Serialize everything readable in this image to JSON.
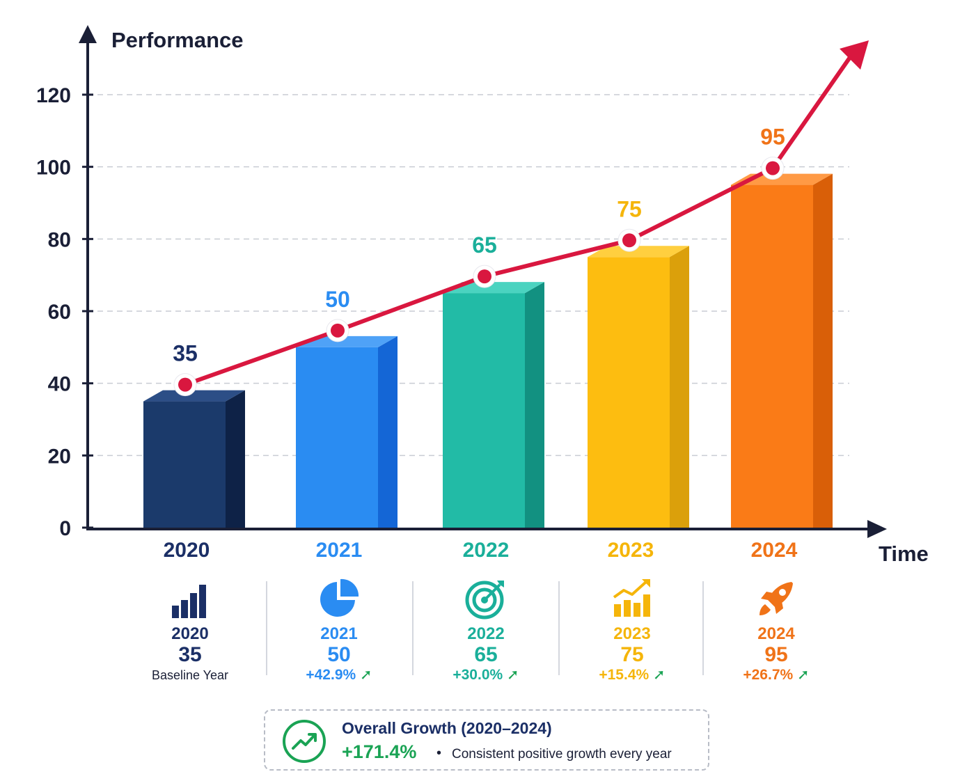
{
  "chart_data": {
    "type": "bar",
    "ylabel": "Performance",
    "xlabel": "Time",
    "ylim": [
      0,
      120
    ],
    "yticks": [
      0,
      20,
      40,
      60,
      80,
      100,
      120
    ],
    "grid": true,
    "categories": [
      "2020",
      "2021",
      "2022",
      "2023",
      "2024"
    ],
    "values": [
      35,
      50,
      65,
      75,
      95
    ],
    "bar_colors": [
      "#1b3a6b",
      "#2a8cf2",
      "#22bba6",
      "#fdbd10",
      "#fa7b17"
    ],
    "bar_side_colors": [
      "#0e2247",
      "#1466d6",
      "#129181",
      "#dba00b",
      "#d95f08"
    ],
    "bar_top_colors": [
      "#2c4e86",
      "#4fa2f7",
      "#4bd3c0",
      "#ffcf3f",
      "#ff9a45"
    ],
    "label_colors": [
      "#1b2f66",
      "#2a8cf2",
      "#1aaf9a",
      "#f5b50a",
      "#f07318"
    ],
    "trend_line_color": "#d9173f",
    "trend_arrow": true
  },
  "cards": [
    {
      "icon": "bar-chart-icon",
      "year": "2020",
      "value": "35",
      "note": "Baseline Year",
      "growth": "",
      "color": "#1b2f66"
    },
    {
      "icon": "pie-chart-icon",
      "year": "2021",
      "value": "50",
      "note": "",
      "growth": "+42.9%",
      "color": "#2a8cf2"
    },
    {
      "icon": "target-icon",
      "year": "2022",
      "value": "65",
      "note": "",
      "growth": "+30.0%",
      "color": "#1aaf9a"
    },
    {
      "icon": "growth-chart-icon",
      "year": "2023",
      "value": "75",
      "note": "",
      "growth": "+15.4%",
      "color": "#f5b50a"
    },
    {
      "icon": "rocket-icon",
      "year": "2024",
      "value": "95",
      "note": "",
      "growth": "+26.7%",
      "color": "#f07318"
    }
  ],
  "summary": {
    "icon": "trending-up-icon",
    "title": "Overall Growth (2020–2024)",
    "value": "+171.4%",
    "note": "Consistent positive growth every year"
  }
}
